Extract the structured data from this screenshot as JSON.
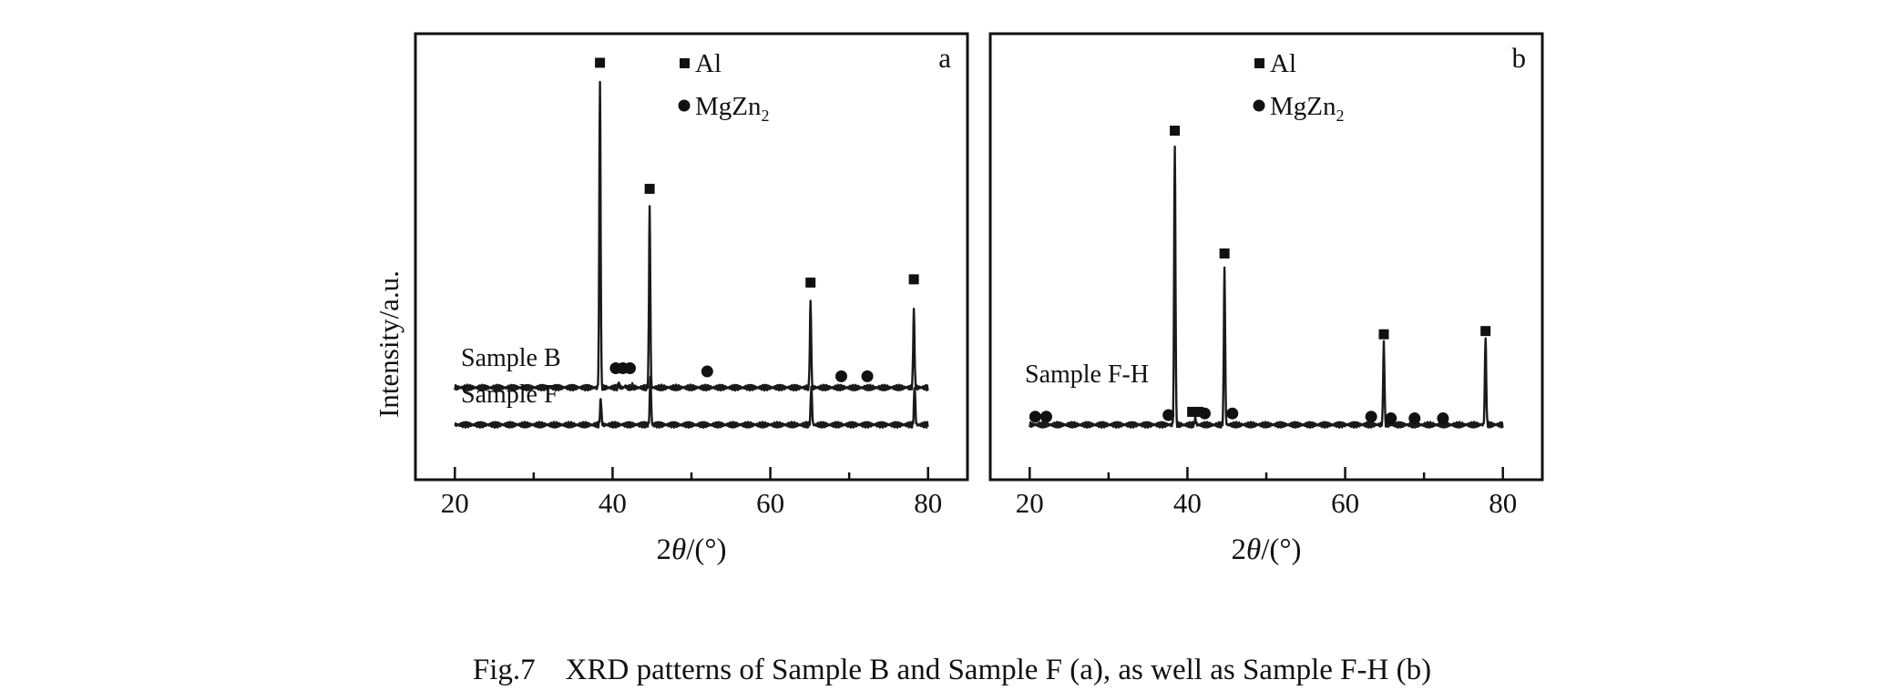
{
  "figure": {
    "ylabel": "Intensity/a.u.",
    "caption": "Fig.7    XRD patterns of Sample B and Sample F (a), as well as Sample F-H (b)"
  },
  "chart_data": [
    {
      "type": "line",
      "panel_label": "a",
      "xlabel": "2θ/(°)",
      "ylabel": "Intensity/a.u.",
      "xlim": [
        15,
        85
      ],
      "xticks": [
        20,
        40,
        60,
        80
      ],
      "legend": {
        "placement": "top-center",
        "entries": [
          {
            "marker": "square",
            "label": "Al"
          },
          {
            "marker": "circle",
            "label": "MgZn2"
          }
        ]
      },
      "series": [
        {
          "name": "Sample B",
          "baseline": 0.25,
          "peaks": [
            {
              "x": 38.4,
              "y": 9.7,
              "phase": "Al"
            },
            {
              "x": 44.7,
              "y": 5.8,
              "phase": "Al"
            },
            {
              "x": 65.1,
              "y": 2.9,
              "phase": "Al"
            },
            {
              "x": 78.2,
              "y": 2.6,
              "phase": "Al"
            },
            {
              "x": 40.8,
              "y": 0.35,
              "phase": "MgZn2"
            },
            {
              "x": 41.6,
              "y": 0.3,
              "phase": "MgZn2"
            },
            {
              "x": 42.5,
              "y": 0.3,
              "phase": "MgZn2"
            }
          ],
          "markers": [
            {
              "x": 38.4,
              "y": 10.3,
              "phase": "Al"
            },
            {
              "x": 44.7,
              "y": 6.4,
              "phase": "Al"
            },
            {
              "x": 65.1,
              "y": 3.5,
              "phase": "Al"
            },
            {
              "x": 78.2,
              "y": 3.6,
              "phase": "Al"
            },
            {
              "x": 40.4,
              "y": 0.85,
              "phase": "MgZn2"
            },
            {
              "x": 41.3,
              "y": 0.85,
              "phase": "MgZn2"
            },
            {
              "x": 42.2,
              "y": 0.85,
              "phase": "MgZn2"
            },
            {
              "x": 52.0,
              "y": 0.75,
              "phase": "MgZn2"
            },
            {
              "x": 69.0,
              "y": 0.6,
              "phase": "MgZn2"
            },
            {
              "x": 72.3,
              "y": 0.6,
              "phase": "MgZn2"
            }
          ]
        },
        {
          "name": "Sample F",
          "baseline": -0.9,
          "peaks": [
            {
              "x": 38.5,
              "y": -0.1
            },
            {
              "x": 44.8,
              "y": 0.6
            },
            {
              "x": 65.2,
              "y": 0.3
            },
            {
              "x": 78.3,
              "y": 0.3
            }
          ],
          "markers": []
        }
      ]
    },
    {
      "type": "line",
      "panel_label": "b",
      "xlabel": "2θ/(°)",
      "xlim": [
        15,
        85
      ],
      "xticks": [
        20,
        40,
        60,
        80
      ],
      "legend": {
        "placement": "top-center",
        "entries": [
          {
            "marker": "square",
            "label": "Al"
          },
          {
            "marker": "circle",
            "label": "MgZn2"
          }
        ]
      },
      "series": [
        {
          "name": "Sample F-H",
          "baseline": -0.9,
          "peaks": [
            {
              "x": 38.4,
              "y": 7.7
            },
            {
              "x": 44.7,
              "y": 3.9
            },
            {
              "x": 64.9,
              "y": 1.6
            },
            {
              "x": 77.8,
              "y": 1.8
            },
            {
              "x": 41.0,
              "y": -0.7
            }
          ],
          "markers": [
            {
              "x": 38.4,
              "y": 8.2,
              "phase": "Al"
            },
            {
              "x": 44.7,
              "y": 4.4,
              "phase": "Al"
            },
            {
              "x": 64.9,
              "y": 1.9,
              "phase": "Al"
            },
            {
              "x": 77.8,
              "y": 2.0,
              "phase": "Al"
            },
            {
              "x": 40.6,
              "y": -0.5,
              "phase": "Al"
            },
            {
              "x": 41.4,
              "y": -0.5,
              "phase": "Al"
            },
            {
              "x": 20.7,
              "y": -0.65,
              "phase": "MgZn2"
            },
            {
              "x": 22.1,
              "y": -0.65,
              "phase": "MgZn2"
            },
            {
              "x": 37.6,
              "y": -0.6,
              "phase": "MgZn2"
            },
            {
              "x": 42.2,
              "y": -0.55,
              "phase": "MgZn2"
            },
            {
              "x": 45.7,
              "y": -0.55,
              "phase": "MgZn2"
            },
            {
              "x": 63.3,
              "y": -0.65,
              "phase": "MgZn2"
            },
            {
              "x": 65.8,
              "y": -0.7,
              "phase": "MgZn2"
            },
            {
              "x": 68.8,
              "y": -0.7,
              "phase": "MgZn2"
            },
            {
              "x": 72.4,
              "y": -0.7,
              "phase": "MgZn2"
            }
          ]
        }
      ]
    }
  ]
}
